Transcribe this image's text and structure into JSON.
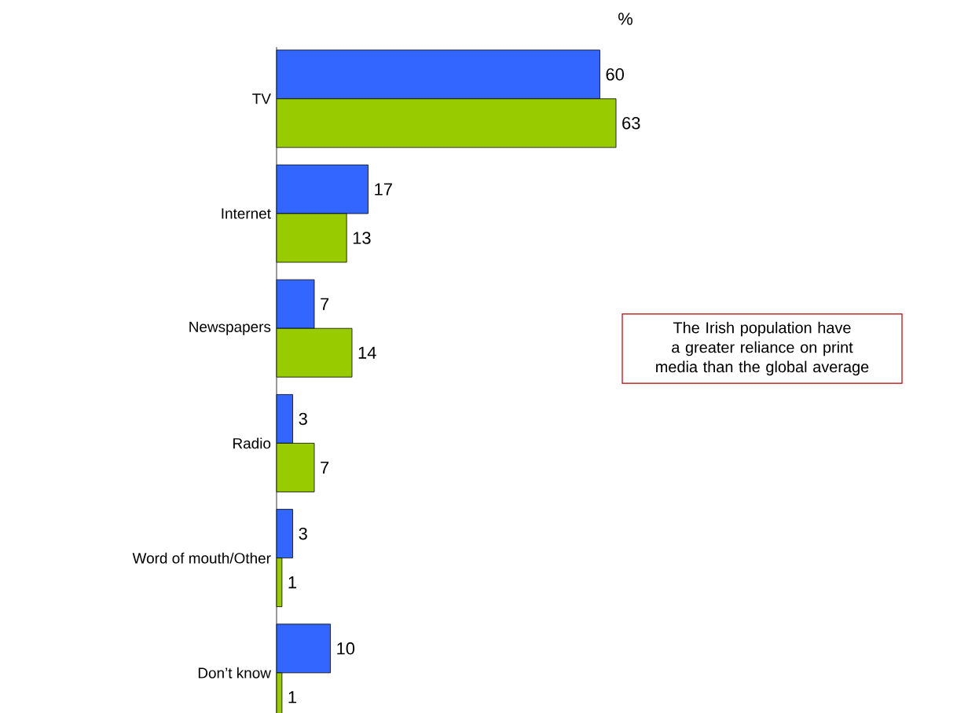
{
  "chart_data": {
    "type": "bar",
    "orientation": "horizontal",
    "data_labels": true,
    "categories": [
      "TV",
      "Internet",
      "Newspapers",
      "Radio",
      "Word of mouth/Other",
      "Don’t know"
    ],
    "series": [
      {
        "color": "#3366ff",
        "values": [
          60,
          17,
          7,
          3,
          3,
          10
        ]
      },
      {
        "color": "#99cc00",
        "values": [
          63,
          13,
          14,
          7,
          1,
          1
        ]
      }
    ],
    "annotations": [
      "%",
      "The Irish population have a greater reliance on print media than the global average"
    ]
  }
}
